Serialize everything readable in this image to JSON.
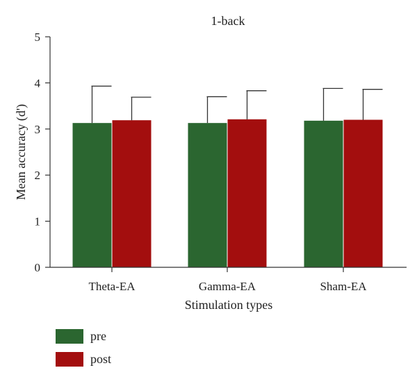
{
  "chart_data": {
    "type": "bar",
    "title": "1-back",
    "xlabel": "Stimulation types",
    "ylabel": "Mean accuracy (d')",
    "ylim": [
      0,
      5
    ],
    "yticks": [
      0,
      1,
      2,
      3,
      4,
      5
    ],
    "categories": [
      "Theta-EA",
      "Gamma-EA",
      "Sham-EA"
    ],
    "series": [
      {
        "name": "pre",
        "values": [
          3.13,
          3.13,
          3.18
        ],
        "error": [
          0.8,
          0.57,
          0.7
        ],
        "color": "#2b6630"
      },
      {
        "name": "post",
        "values": [
          3.19,
          3.21,
          3.2
        ],
        "error": [
          0.5,
          0.62,
          0.66
        ],
        "color": "#a30e0e"
      }
    ],
    "grid": false,
    "legend_position": "bottom-left"
  }
}
